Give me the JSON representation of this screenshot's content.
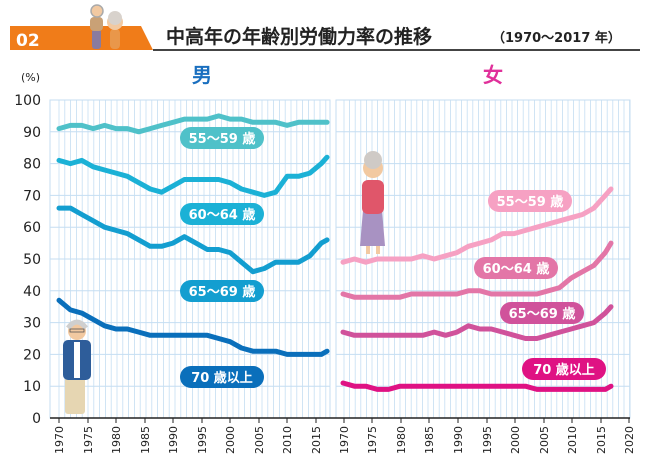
{
  "header": {
    "badge": "02",
    "title": "中高年の年齢別労働力率の推移",
    "period": "（1970～2017 年）"
  },
  "colors": {
    "badge": "#f07c19",
    "grid": "#c5def2",
    "c55_m": "#4fc1c9",
    "c60_m": "#1bb1d6",
    "c65_m": "#139ed0",
    "c70_m": "#0a6fbb",
    "c55_f": "#f6a1c3",
    "c60_f": "#e376a7",
    "c65_f": "#d0529b",
    "c70_f": "#df1283"
  },
  "illustrations": [
    "elderly-couple-icon",
    "elderly-man-icon",
    "elderly-woman-icon"
  ],
  "chart_data": [
    {
      "type": "line",
      "title": "男",
      "ylabel": "(%)",
      "ylim": [
        0,
        100
      ],
      "yticks": [
        "0",
        "10",
        "20",
        "30",
        "40",
        "50",
        "60",
        "70",
        "80",
        "90",
        "100"
      ],
      "xlim": [
        1970,
        2017
      ],
      "xticks": [
        "1970",
        "1975",
        "1980",
        "1985",
        "1990",
        "1995",
        "2000",
        "2005",
        "2010",
        "2015"
      ],
      "grid": true,
      "series": [
        {
          "name": "55～59 歳",
          "color_key": "c55_m",
          "x": [
            1970,
            1972,
            1974,
            1976,
            1978,
            1980,
            1982,
            1984,
            1986,
            1988,
            1990,
            1992,
            1994,
            1996,
            1998,
            2000,
            2002,
            2004,
            2006,
            2008,
            2010,
            2012,
            2014,
            2016,
            2017
          ],
          "values": [
            91,
            92,
            92,
            91,
            92,
            91,
            91,
            90,
            91,
            92,
            93,
            94,
            94,
            94,
            95,
            94,
            94,
            93,
            93,
            93,
            92,
            93,
            93,
            93,
            93
          ]
        },
        {
          "name": "60～64 歳",
          "color_key": "c60_m",
          "x": [
            1970,
            1972,
            1974,
            1976,
            1978,
            1980,
            1982,
            1984,
            1986,
            1988,
            1990,
            1992,
            1994,
            1996,
            1998,
            2000,
            2002,
            2004,
            2006,
            2008,
            2010,
            2012,
            2014,
            2016,
            2017
          ],
          "values": [
            81,
            80,
            81,
            79,
            78,
            77,
            76,
            74,
            72,
            71,
            73,
            75,
            75,
            75,
            75,
            74,
            72,
            71,
            70,
            71,
            76,
            76,
            77,
            80,
            82
          ]
        },
        {
          "name": "65～69 歳",
          "color_key": "c65_m",
          "x": [
            1970,
            1972,
            1974,
            1976,
            1978,
            1980,
            1982,
            1984,
            1986,
            1988,
            1990,
            1992,
            1994,
            1996,
            1998,
            2000,
            2002,
            2004,
            2006,
            2008,
            2010,
            2012,
            2014,
            2016,
            2017
          ],
          "values": [
            66,
            66,
            64,
            62,
            60,
            59,
            58,
            56,
            54,
            54,
            55,
            57,
            55,
            53,
            53,
            52,
            49,
            46,
            47,
            49,
            49,
            49,
            51,
            55,
            56
          ]
        },
        {
          "name": "70 歳以上",
          "color_key": "c70_m",
          "x": [
            1970,
            1972,
            1974,
            1976,
            1978,
            1980,
            1982,
            1984,
            1986,
            1988,
            1990,
            1992,
            1994,
            1996,
            1998,
            2000,
            2002,
            2004,
            2006,
            2008,
            2010,
            2012,
            2014,
            2016,
            2017
          ],
          "values": [
            37,
            34,
            33,
            31,
            29,
            28,
            28,
            27,
            26,
            26,
            26,
            26,
            26,
            26,
            25,
            24,
            22,
            21,
            21,
            21,
            20,
            20,
            20,
            20,
            21
          ]
        }
      ]
    },
    {
      "type": "line",
      "title": "女",
      "xlim": [
        1970,
        2017
      ],
      "xticks": [
        "1970",
        "1975",
        "1980",
        "1985",
        "1990",
        "1995",
        "2000",
        "2005",
        "2010",
        "2015",
        "2020"
      ],
      "grid": true,
      "series": [
        {
          "name": "55～59 歳",
          "color_key": "c55_f",
          "x": [
            1970,
            1972,
            1974,
            1976,
            1978,
            1980,
            1982,
            1984,
            1986,
            1988,
            1990,
            1992,
            1994,
            1996,
            1998,
            2000,
            2002,
            2004,
            2006,
            2008,
            2010,
            2012,
            2014,
            2016,
            2017
          ],
          "values": [
            49,
            50,
            49,
            50,
            50,
            50,
            50,
            51,
            50,
            51,
            52,
            54,
            55,
            56,
            58,
            58,
            59,
            60,
            61,
            62,
            63,
            64,
            66,
            70,
            72
          ]
        },
        {
          "name": "60～64 歳",
          "color_key": "c60_f",
          "x": [
            1970,
            1972,
            1974,
            1976,
            1978,
            1980,
            1982,
            1984,
            1986,
            1988,
            1990,
            1992,
            1994,
            1996,
            1998,
            2000,
            2002,
            2004,
            2006,
            2008,
            2010,
            2012,
            2014,
            2016,
            2017
          ],
          "values": [
            39,
            38,
            38,
            38,
            38,
            38,
            39,
            39,
            39,
            39,
            39,
            40,
            40,
            39,
            39,
            39,
            39,
            39,
            40,
            41,
            44,
            46,
            48,
            52,
            55
          ]
        },
        {
          "name": "65～69 歳",
          "color_key": "c65_f",
          "x": [
            1970,
            1972,
            1974,
            1976,
            1978,
            1980,
            1982,
            1984,
            1986,
            1988,
            1990,
            1992,
            1994,
            1996,
            1998,
            2000,
            2002,
            2004,
            2006,
            2008,
            2010,
            2012,
            2014,
            2016,
            2017
          ],
          "values": [
            27,
            26,
            26,
            26,
            26,
            26,
            26,
            26,
            27,
            26,
            27,
            29,
            28,
            28,
            27,
            26,
            25,
            25,
            26,
            27,
            28,
            29,
            30,
            33,
            35
          ]
        },
        {
          "name": "70 歳以上",
          "color_key": "c70_f",
          "x": [
            1970,
            1972,
            1974,
            1976,
            1978,
            1980,
            1982,
            1984,
            1986,
            1988,
            1990,
            1992,
            1994,
            1996,
            1998,
            2000,
            2002,
            2004,
            2006,
            2008,
            2010,
            2012,
            2014,
            2016,
            2017
          ],
          "values": [
            11,
            10,
            10,
            9,
            9,
            10,
            10,
            10,
            10,
            10,
            10,
            10,
            10,
            10,
            10,
            10,
            10,
            9,
            9,
            9,
            9,
            9,
            9,
            9,
            10
          ]
        }
      ]
    }
  ]
}
